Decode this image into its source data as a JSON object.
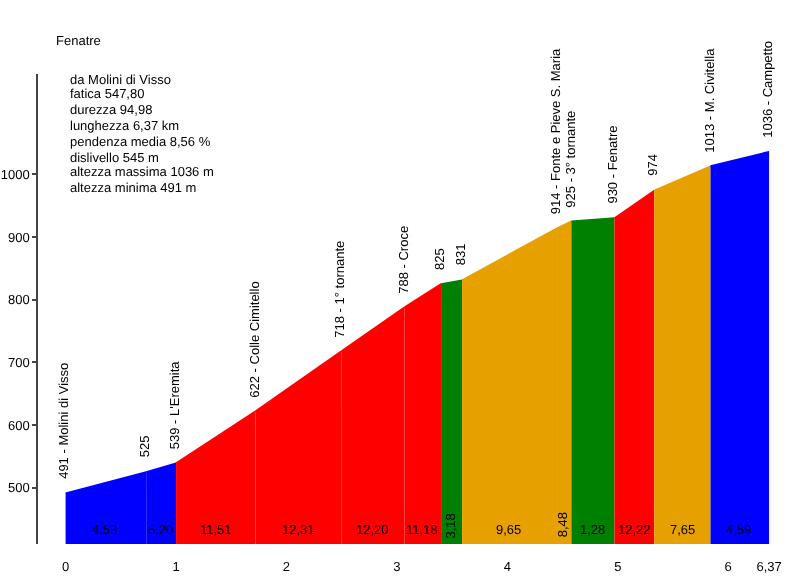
{
  "chart_data": {
    "type": "area",
    "title": "Fenatre",
    "xlim": [
      -0.25,
      6.65
    ],
    "ylim": [
      410,
      1160
    ],
    "xticks": [
      0,
      1,
      2,
      3,
      4,
      5,
      6,
      {
        "value": 6.37,
        "label": "6,37"
      }
    ],
    "yticks": [
      500,
      600,
      700,
      800,
      900,
      1000
    ],
    "grid": false,
    "series": [
      {
        "color": "#0000ff",
        "x": [
          0,
          0.73
        ],
        "values": [
          491,
          525
        ]
      },
      {
        "color": "#0000ff",
        "x": [
          0.73,
          1.0
        ],
        "values": [
          525,
          539
        ]
      },
      {
        "color": "#ff0000",
        "x": [
          1.0,
          1.72
        ],
        "values": [
          539,
          622
        ]
      },
      {
        "color": "#ff0000",
        "x": [
          1.72,
          2.5
        ],
        "values": [
          622,
          718
        ]
      },
      {
        "color": "#ff0000",
        "x": [
          2.5,
          3.07
        ],
        "values": [
          718,
          788
        ]
      },
      {
        "color": "#ff0000",
        "x": [
          3.07,
          3.4
        ],
        "values": [
          788,
          825
        ]
      },
      {
        "color": "#008000",
        "x": [
          3.4,
          3.59
        ],
        "values": [
          825,
          831
        ]
      },
      {
        "color": "#e6a100",
        "x": [
          3.59,
          4.45
        ],
        "values": [
          831,
          914
        ]
      },
      {
        "color": "#e6a100",
        "x": [
          4.45,
          4.58
        ],
        "values": [
          914,
          925
        ]
      },
      {
        "color": "#008000",
        "x": [
          4.58,
          4.97
        ],
        "values": [
          925,
          930
        ]
      },
      {
        "color": "#ff0000",
        "x": [
          4.97,
          5.33
        ],
        "values": [
          930,
          974
        ]
      },
      {
        "color": "#e6a100",
        "x": [
          5.33,
          5.84
        ],
        "values": [
          974,
          1013
        ]
      },
      {
        "color": "#0000ff",
        "x": [
          5.84,
          6.37
        ],
        "values": [
          1013,
          1036
        ]
      }
    ],
    "annotations": [
      "da Molini di Visso",
      "fatica 547,80",
      "durezza 94,98",
      "lunghezza 6,37 km",
      "pendenza media 8,56 %",
      "dislivello 545 m",
      "altezza massima 1036 m",
      "altezza minima 491 m",
      {
        "text": "491 - Molini di Visso",
        "x": 0,
        "y": 491
      },
      {
        "text": "525",
        "x": 0.73,
        "y": 525
      },
      {
        "text": "539 - L'Eremita",
        "x": 1.0,
        "y": 539
      },
      {
        "text": "622 - Colle Cimitello",
        "x": 1.72,
        "y": 622
      },
      {
        "text": "718 - 1° tornante",
        "x": 2.5,
        "y": 718
      },
      {
        "text": "788 - Croce",
        "x": 3.07,
        "y": 788
      },
      {
        "text": "825",
        "x": 3.4,
        "y": 825
      },
      {
        "text": "831",
        "x": 3.59,
        "y": 831
      },
      {
        "text": "914 - Fonte e Pieve S. Maria",
        "x": 4.45,
        "y": 914
      },
      {
        "text": "925 - 3° tornante",
        "x": 4.58,
        "y": 925
      },
      {
        "text": "930 - Fenatre",
        "x": 4.97,
        "y": 930
      },
      {
        "text": "974",
        "x": 5.33,
        "y": 974
      },
      {
        "text": "1013 - M. Civitella",
        "x": 5.84,
        "y": 1013
      },
      {
        "text": "1036 - Campetto",
        "x": 6.37,
        "y": 1036
      },
      "4,53",
      "5,20",
      "11,51",
      "12,31",
      "12,20",
      "11,18",
      "3,18",
      "9,65",
      "8,48",
      "1,28",
      "12,22",
      "7,65",
      "4,59"
    ]
  }
}
